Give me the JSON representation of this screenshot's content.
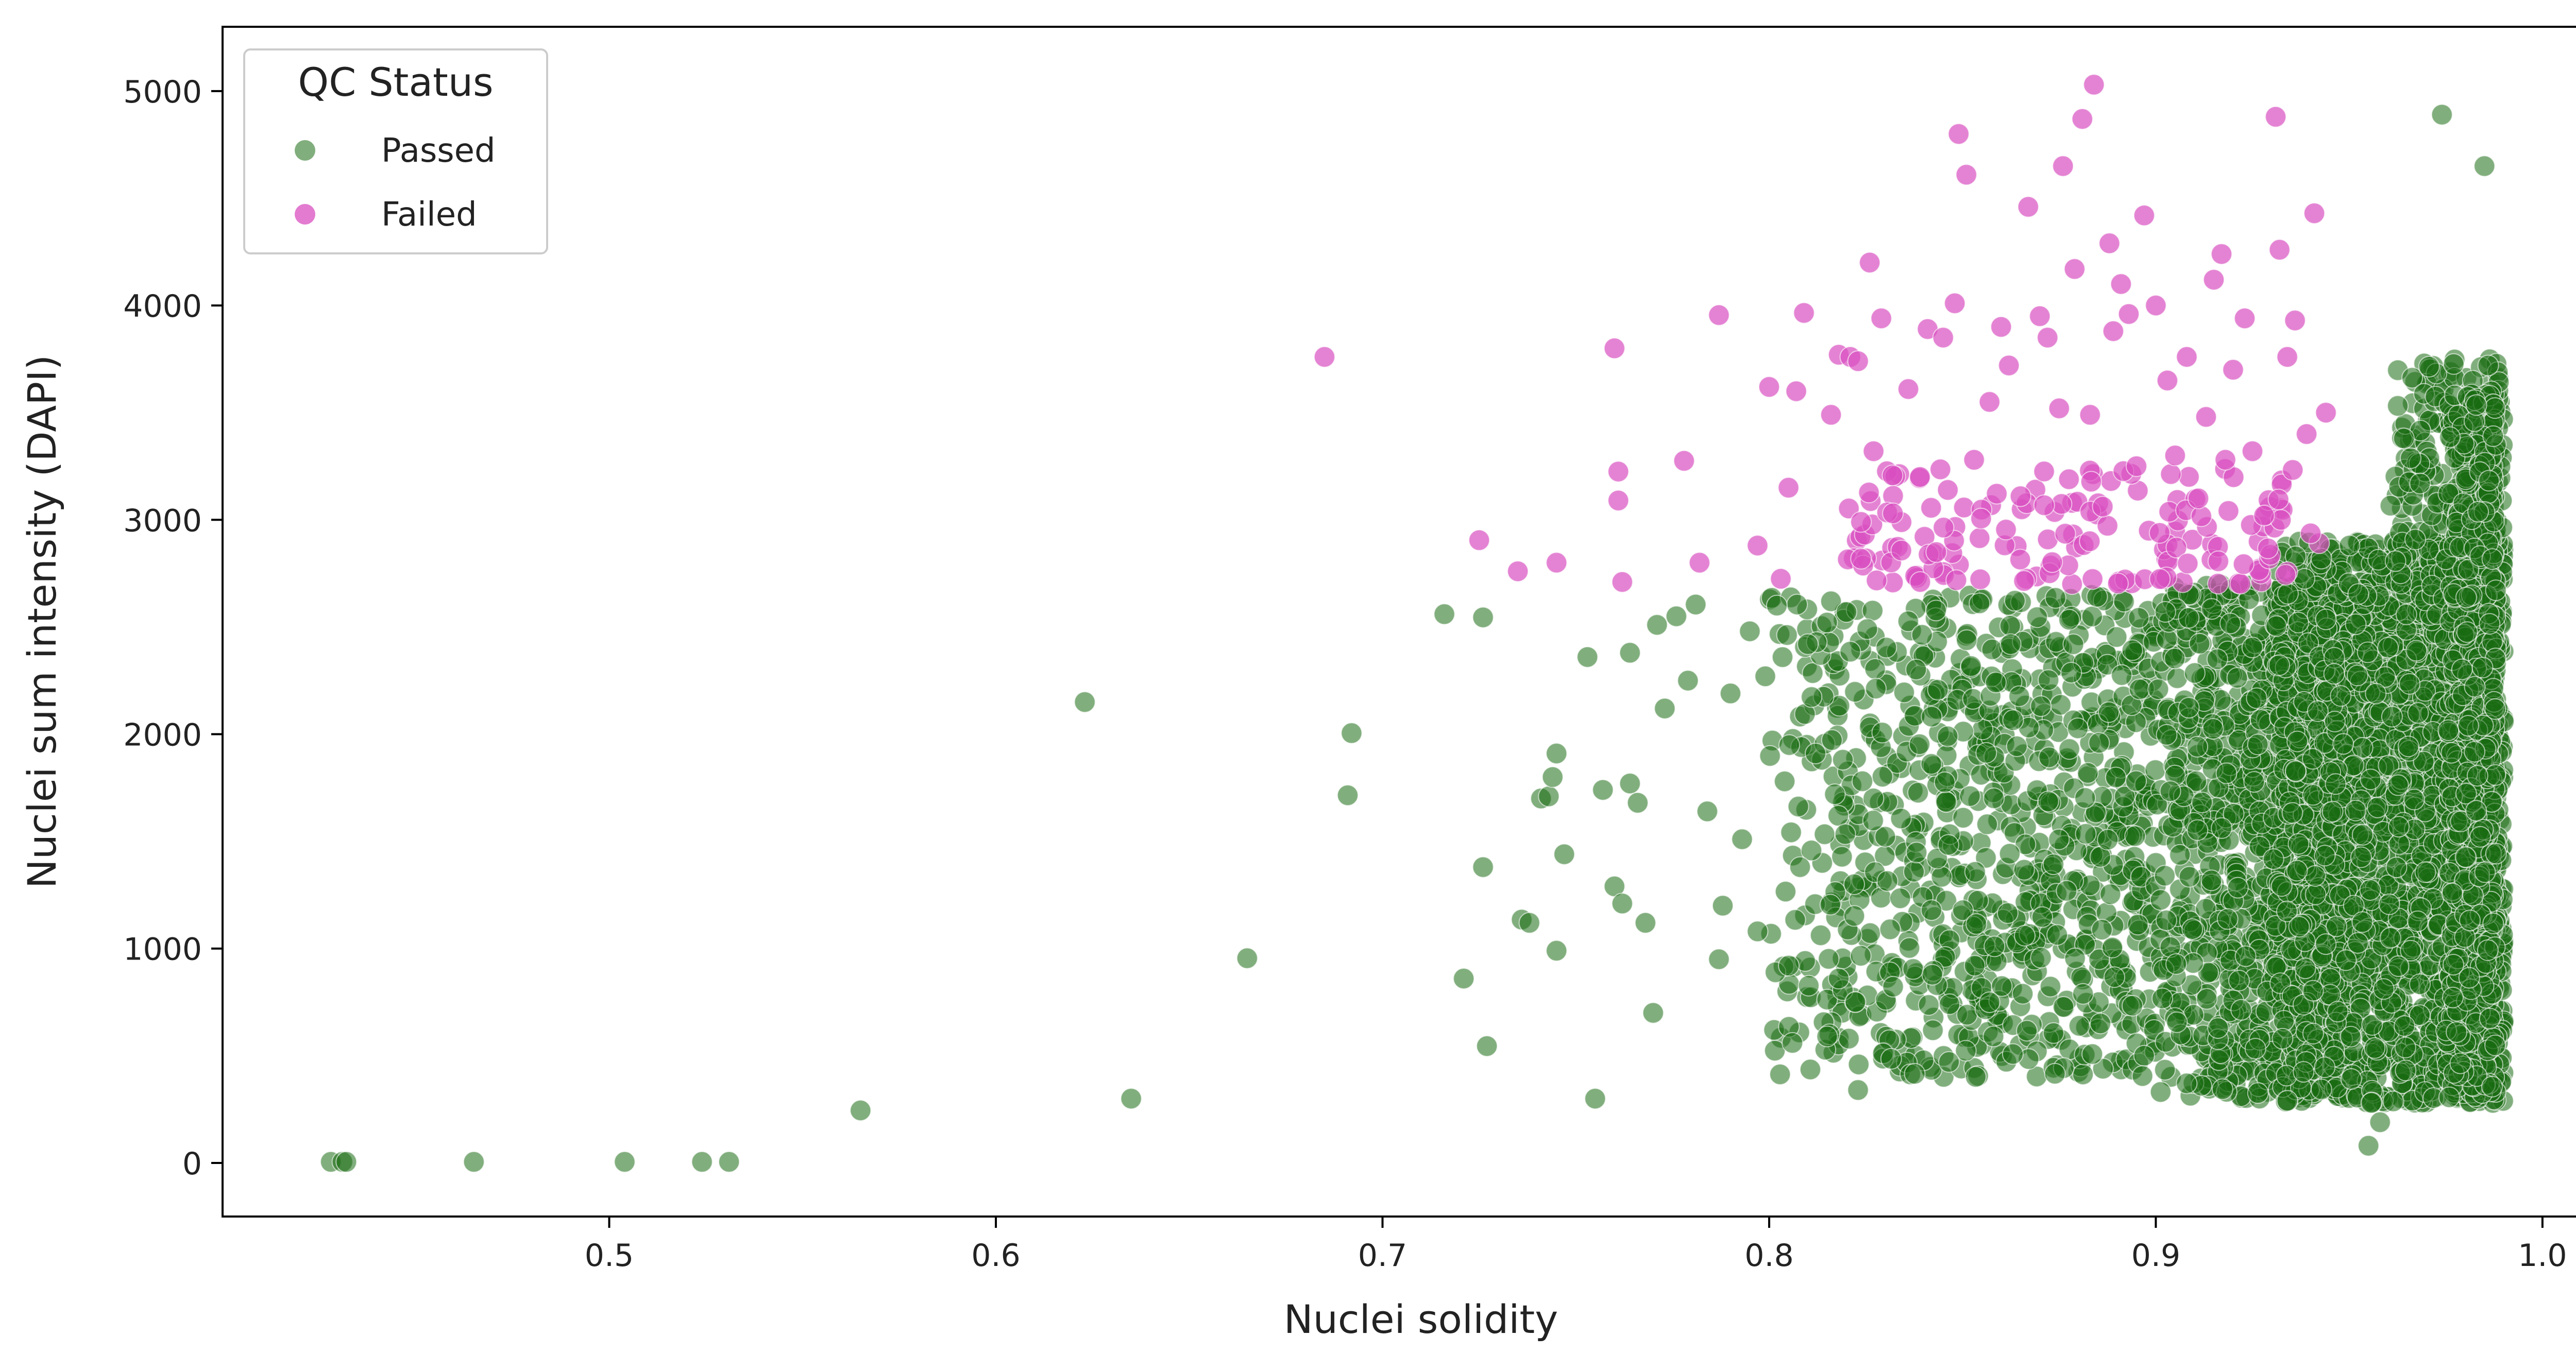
{
  "chart_data": {
    "type": "scatter",
    "title": "",
    "xlabel": "Nuclei solidity",
    "ylabel": "Nuclei sum intensity (DAPI)",
    "xlim": [
      0.4,
      1.02
    ],
    "ylim": [
      -250,
      5300
    ],
    "xticks": [
      "0.5",
      "0.6",
      "0.7",
      "0.8",
      "0.9",
      "1.0"
    ],
    "xtick_values": [
      0.5,
      0.6,
      0.7,
      0.8,
      0.9,
      1.0
    ],
    "yticks": [
      "0",
      "1000",
      "2000",
      "3000",
      "4000",
      "5000"
    ],
    "ytick_values": [
      0,
      1000,
      2000,
      3000,
      4000,
      5000
    ],
    "grid": false,
    "legend": {
      "title": "QC Status",
      "placement": "top-left",
      "entries": [
        "Passed",
        "Failed"
      ]
    },
    "failed_threshold_y": 2700,
    "series": [
      {
        "name": "Passed",
        "color": "#1a6b12",
        "points": [
          [
            0.428,
            5
          ],
          [
            0.431,
            5
          ],
          [
            0.432,
            5
          ],
          [
            0.465,
            5
          ],
          [
            0.504,
            5
          ],
          [
            0.524,
            5
          ],
          [
            0.531,
            5
          ],
          [
            0.565,
            245
          ],
          [
            0.623,
            2150
          ],
          [
            0.635,
            300
          ],
          [
            0.665,
            955
          ],
          [
            0.691,
            1715
          ],
          [
            0.692,
            2005
          ],
          [
            0.716,
            2560
          ],
          [
            0.721,
            860
          ],
          [
            0.726,
            1380
          ],
          [
            0.726,
            2545
          ],
          [
            0.727,
            545
          ],
          [
            0.736,
            1135
          ],
          [
            0.738,
            1120
          ],
          [
            0.741,
            1700
          ],
          [
            0.743,
            1710
          ],
          [
            0.744,
            1800
          ],
          [
            0.745,
            1910
          ],
          [
            0.745,
            990
          ],
          [
            0.747,
            1440
          ],
          [
            0.753,
            2360
          ],
          [
            0.755,
            300
          ],
          [
            0.757,
            1740
          ],
          [
            0.76,
            1290
          ],
          [
            0.762,
            1210
          ],
          [
            0.764,
            2380
          ],
          [
            0.764,
            1770
          ],
          [
            0.766,
            1680
          ],
          [
            0.768,
            1120
          ],
          [
            0.77,
            700
          ],
          [
            0.771,
            2510
          ],
          [
            0.773,
            2120
          ],
          [
            0.776,
            2550
          ],
          [
            0.779,
            2250
          ],
          [
            0.781,
            2605
          ],
          [
            0.784,
            1640
          ],
          [
            0.787,
            950
          ],
          [
            0.788,
            1200
          ],
          [
            0.79,
            2190
          ],
          [
            0.793,
            1510
          ],
          [
            0.795,
            2480
          ],
          [
            0.797,
            1080
          ],
          [
            0.799,
            2270
          ],
          [
            0.802,
            2600
          ],
          [
            0.804,
            1780
          ],
          [
            0.806,
            560
          ],
          [
            0.808,
            1380
          ],
          [
            0.81,
            2420
          ],
          [
            0.812,
            1910
          ],
          [
            0.815,
            590
          ],
          [
            0.816,
            2620
          ],
          [
            0.817,
            1720
          ],
          [
            0.818,
            860
          ],
          [
            0.82,
            2570
          ],
          [
            0.822,
            1300
          ],
          [
            0.823,
            340
          ]
        ],
        "dense_clusters": [
          {
            "x_range": [
              0.8,
              0.9
            ],
            "y_range": [
              400,
              2650
            ],
            "count": 900
          },
          {
            "x_range": [
              0.9,
              0.95
            ],
            "y_range": [
              300,
              2700
            ],
            "count": 1200
          },
          {
            "x_range": [
              0.93,
              0.99
            ],
            "y_range": [
              280,
              2900
            ],
            "count": 2400
          },
          {
            "x_range": [
              0.96,
              0.99
            ],
            "y_range": [
              2500,
              3750
            ],
            "count": 260
          },
          {
            "x_range": [
              0.975,
              0.988
            ],
            "y_range": [
              300,
              3600
            ],
            "count": 700
          }
        ],
        "outliers_high": [
          [
            0.974,
            4890
          ],
          [
            0.985,
            4650
          ],
          [
            0.955,
            80
          ],
          [
            0.958,
            190
          ]
        ]
      },
      {
        "name": "Failed",
        "color": "#d94fc0",
        "points": [
          [
            0.685,
            3760
          ],
          [
            0.725,
            2905
          ],
          [
            0.735,
            2760
          ],
          [
            0.745,
            2800
          ],
          [
            0.76,
            3800
          ],
          [
            0.761,
            3225
          ],
          [
            0.761,
            3090
          ],
          [
            0.762,
            2710
          ],
          [
            0.778,
            3275
          ],
          [
            0.782,
            2800
          ],
          [
            0.787,
            3955
          ],
          [
            0.797,
            2880
          ],
          [
            0.8,
            3620
          ],
          [
            0.803,
            2725
          ],
          [
            0.805,
            3150
          ],
          [
            0.807,
            3600
          ],
          [
            0.809,
            3965
          ],
          [
            0.816,
            3490
          ],
          [
            0.818,
            3770
          ],
          [
            0.821,
            3760
          ],
          [
            0.823,
            3740
          ],
          [
            0.826,
            4200
          ],
          [
            0.827,
            3320
          ],
          [
            0.829,
            3940
          ],
          [
            0.832,
            3030
          ],
          [
            0.836,
            3610
          ],
          [
            0.839,
            3200
          ],
          [
            0.841,
            3890
          ],
          [
            0.845,
            3850
          ],
          [
            0.848,
            4010
          ],
          [
            0.849,
            4800
          ],
          [
            0.851,
            4610
          ],
          [
            0.853,
            3280
          ],
          [
            0.857,
            3550
          ],
          [
            0.86,
            3900
          ],
          [
            0.862,
            3720
          ],
          [
            0.865,
            3110
          ],
          [
            0.867,
            4460
          ],
          [
            0.87,
            3950
          ],
          [
            0.872,
            3850
          ],
          [
            0.875,
            3520
          ],
          [
            0.876,
            4650
          ],
          [
            0.879,
            4170
          ],
          [
            0.881,
            4870
          ],
          [
            0.883,
            3490
          ],
          [
            0.884,
            5030
          ],
          [
            0.888,
            4290
          ],
          [
            0.889,
            3880
          ],
          [
            0.891,
            4100
          ],
          [
            0.893,
            3960
          ],
          [
            0.895,
            3250
          ],
          [
            0.897,
            4420
          ],
          [
            0.9,
            4000
          ],
          [
            0.903,
            3650
          ],
          [
            0.905,
            3300
          ],
          [
            0.908,
            3760
          ],
          [
            0.911,
            3100
          ],
          [
            0.913,
            3480
          ],
          [
            0.915,
            4120
          ],
          [
            0.917,
            4240
          ],
          [
            0.918,
            3280
          ],
          [
            0.92,
            3700
          ],
          [
            0.923,
            3940
          ],
          [
            0.925,
            3320
          ],
          [
            0.928,
            3020
          ],
          [
            0.931,
            4880
          ],
          [
            0.932,
            4260
          ],
          [
            0.934,
            3760
          ],
          [
            0.936,
            3930
          ],
          [
            0.939,
            3400
          ],
          [
            0.941,
            4430
          ],
          [
            0.944,
            3500
          ]
        ],
        "dense_cluster": {
          "x_range": [
            0.82,
            0.945
          ],
          "y_range": [
            2700,
            3250
          ],
          "count": 160
        }
      }
    ]
  }
}
